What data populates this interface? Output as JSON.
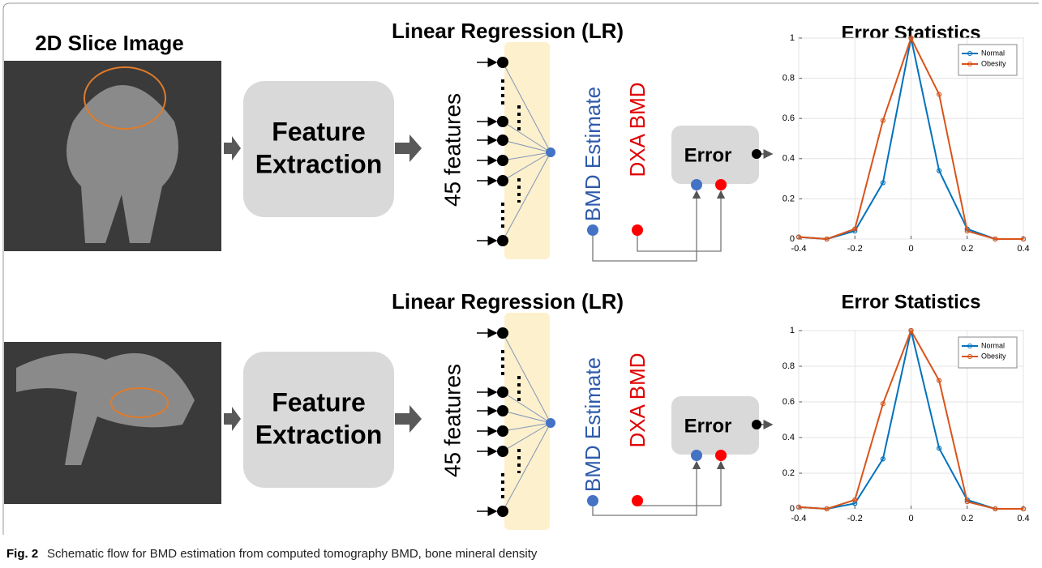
{
  "panels": [
    {
      "image_label": "2D Slice Image",
      "feature_block": [
        "Feature",
        "Extraction"
      ],
      "lr_title": "Linear Regression (LR)",
      "features_label": "45 features",
      "estimate_label": "BMD Estimate",
      "reference_label": "DXA BMD",
      "error_label": "Error"
    },
    {
      "feature_block": [
        "Feature",
        "Extraction"
      ],
      "lr_title": "Linear Regression (LR)",
      "features_label": "45 features",
      "estimate_label": "BMD Estimate",
      "reference_label": "DXA BMD",
      "error_label": "Error"
    }
  ],
  "chart_data": [
    {
      "type": "line",
      "title": "Error Statistics",
      "x": [
        -0.4,
        -0.3,
        -0.2,
        -0.1,
        0,
        0.1,
        0.2,
        0.3,
        0.4
      ],
      "series": [
        {
          "name": "Normal",
          "color": "#0072bd",
          "values": [
            0.01,
            0,
            0.04,
            0.28,
            1,
            0.34,
            0.05,
            0,
            0
          ]
        },
        {
          "name": "Obesity",
          "color": "#d95319",
          "values": [
            0.01,
            0,
            0.05,
            0.59,
            1,
            0.72,
            0.04,
            0,
            0
          ]
        }
      ],
      "xlim": [
        -0.4,
        0.4
      ],
      "ylim": [
        0,
        1
      ],
      "xticks": [
        -0.4,
        -0.2,
        0,
        0.2,
        0.4
      ],
      "yticks": [
        0,
        0.2,
        0.4,
        0.6,
        0.8,
        1
      ],
      "grid": true,
      "legend": "upper right"
    },
    {
      "type": "line",
      "title": "Error Statistics",
      "x": [
        -0.4,
        -0.3,
        -0.2,
        -0.1,
        0,
        0.1,
        0.2,
        0.3,
        0.4
      ],
      "series": [
        {
          "name": "Normal",
          "color": "#0072bd",
          "values": [
            0.01,
            0,
            0.03,
            0.28,
            1,
            0.34,
            0.05,
            0,
            0
          ]
        },
        {
          "name": "Obesity",
          "color": "#d95319",
          "values": [
            0.01,
            0,
            0.05,
            0.59,
            1,
            0.72,
            0.04,
            0,
            0
          ]
        }
      ],
      "xlim": [
        -0.4,
        0.4
      ],
      "ylim": [
        0,
        1
      ],
      "xticks": [
        -0.4,
        -0.2,
        0,
        0.2,
        0.4
      ],
      "yticks": [
        0,
        0.2,
        0.4,
        0.6,
        0.8,
        1
      ],
      "grid": true,
      "legend": "upper right"
    }
  ],
  "caption": {
    "label": "Fig. 2",
    "text": "Schematic flow for BMD estimation from computed tomography BMD, bone mineral density"
  }
}
